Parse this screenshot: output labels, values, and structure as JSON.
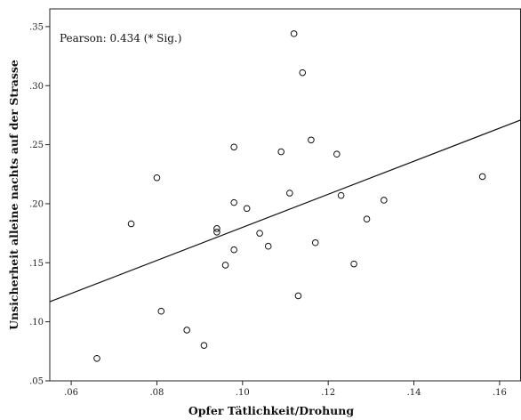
{
  "chart_data": {
    "type": "scatter",
    "annotation": "Pearson: 0.434 (* Sig.)",
    "xlabel": "Opfer Tätlichkeit/Drohung",
    "ylabel": "Unsicherheit alleine nachts auf der Strasse",
    "xlim": [
      0.055,
      0.165
    ],
    "ylim": [
      0.05,
      0.365
    ],
    "xticks": [
      ".06",
      ".08",
      ".10",
      ".12",
      ".14",
      ".16"
    ],
    "yticks": [
      ".05",
      ".10",
      ".15",
      ".20",
      ".25",
      ".30",
      ".35"
    ],
    "grid": false,
    "points": [
      {
        "x": 0.066,
        "y": 0.069
      },
      {
        "x": 0.074,
        "y": 0.183
      },
      {
        "x": 0.08,
        "y": 0.222
      },
      {
        "x": 0.081,
        "y": 0.109
      },
      {
        "x": 0.087,
        "y": 0.093
      },
      {
        "x": 0.091,
        "y": 0.08
      },
      {
        "x": 0.094,
        "y": 0.176
      },
      {
        "x": 0.094,
        "y": 0.179
      },
      {
        "x": 0.096,
        "y": 0.148
      },
      {
        "x": 0.098,
        "y": 0.161
      },
      {
        "x": 0.098,
        "y": 0.201
      },
      {
        "x": 0.098,
        "y": 0.248
      },
      {
        "x": 0.101,
        "y": 0.196
      },
      {
        "x": 0.104,
        "y": 0.175
      },
      {
        "x": 0.106,
        "y": 0.164
      },
      {
        "x": 0.109,
        "y": 0.244
      },
      {
        "x": 0.111,
        "y": 0.209
      },
      {
        "x": 0.112,
        "y": 0.344
      },
      {
        "x": 0.113,
        "y": 0.122
      },
      {
        "x": 0.114,
        "y": 0.311
      },
      {
        "x": 0.116,
        "y": 0.254
      },
      {
        "x": 0.117,
        "y": 0.167
      },
      {
        "x": 0.122,
        "y": 0.242
      },
      {
        "x": 0.123,
        "y": 0.207
      },
      {
        "x": 0.126,
        "y": 0.149
      },
      {
        "x": 0.129,
        "y": 0.187
      },
      {
        "x": 0.133,
        "y": 0.203
      },
      {
        "x": 0.156,
        "y": 0.223
      }
    ],
    "fit_line": {
      "x0": 0.055,
      "y0": 0.117,
      "x1": 0.165,
      "y1": 0.271
    }
  }
}
